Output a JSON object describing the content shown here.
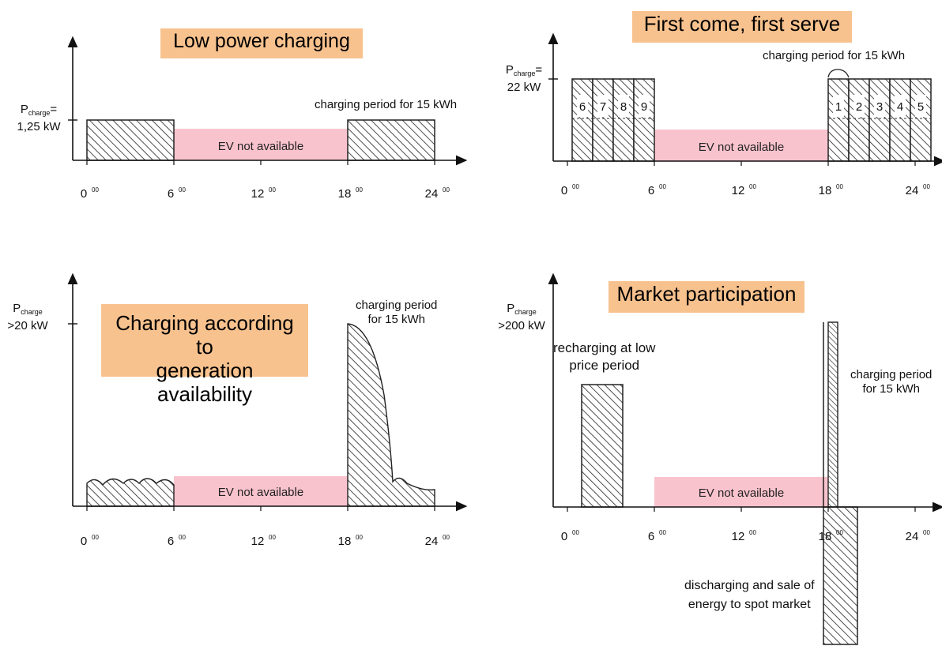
{
  "colors": {
    "title_bg": "#f8c28e",
    "unavailable_bg": "#f9c3cd",
    "hatch": "#222222"
  },
  "time_ticks": [
    "00",
    "6",
    "12",
    "18",
    "24"
  ],
  "tick_sup": "00",
  "unavailable_label": "EV not available",
  "panels": [
    {
      "id": "low-power",
      "title": "Low power charging",
      "ylabel_main": "P",
      "ylabel_sub": "charge",
      "ylabel_value_suffix": "=",
      "ylabel_value": "1,25 kW",
      "annotation": "charging period for 15 kWh"
    },
    {
      "id": "fcfs",
      "title": "First come, first serve",
      "ylabel_main": "P",
      "ylabel_sub": "charge",
      "ylabel_value_suffix": "=",
      "ylabel_value": "22 kW",
      "annotation": "charging period for 15 kWh",
      "slots_morning": [
        "6",
        "7",
        "8",
        "9"
      ],
      "slots_evening": [
        "1",
        "2",
        "3",
        "4",
        "5"
      ]
    },
    {
      "id": "generation",
      "title": "Charging according to generation availability",
      "title_line1": "Charging according to",
      "title_line2": "generation availability",
      "ylabel_main": "P",
      "ylabel_sub": "charge",
      "ylabel_value": ">20 kW",
      "annotation_line1": "charging period",
      "annotation_line2": "for 15 kWh"
    },
    {
      "id": "market",
      "title": "Market participation",
      "ylabel_main": "P",
      "ylabel_sub": "charge",
      "ylabel_value": ">200 kW",
      "recharge_line1": "recharging at low",
      "recharge_line2": "price period",
      "annotation_line1": "charging period",
      "annotation_line2": "for 15 kWh",
      "discharge_line1": "discharging and sale of",
      "discharge_line2": "energy to spot market"
    }
  ]
}
